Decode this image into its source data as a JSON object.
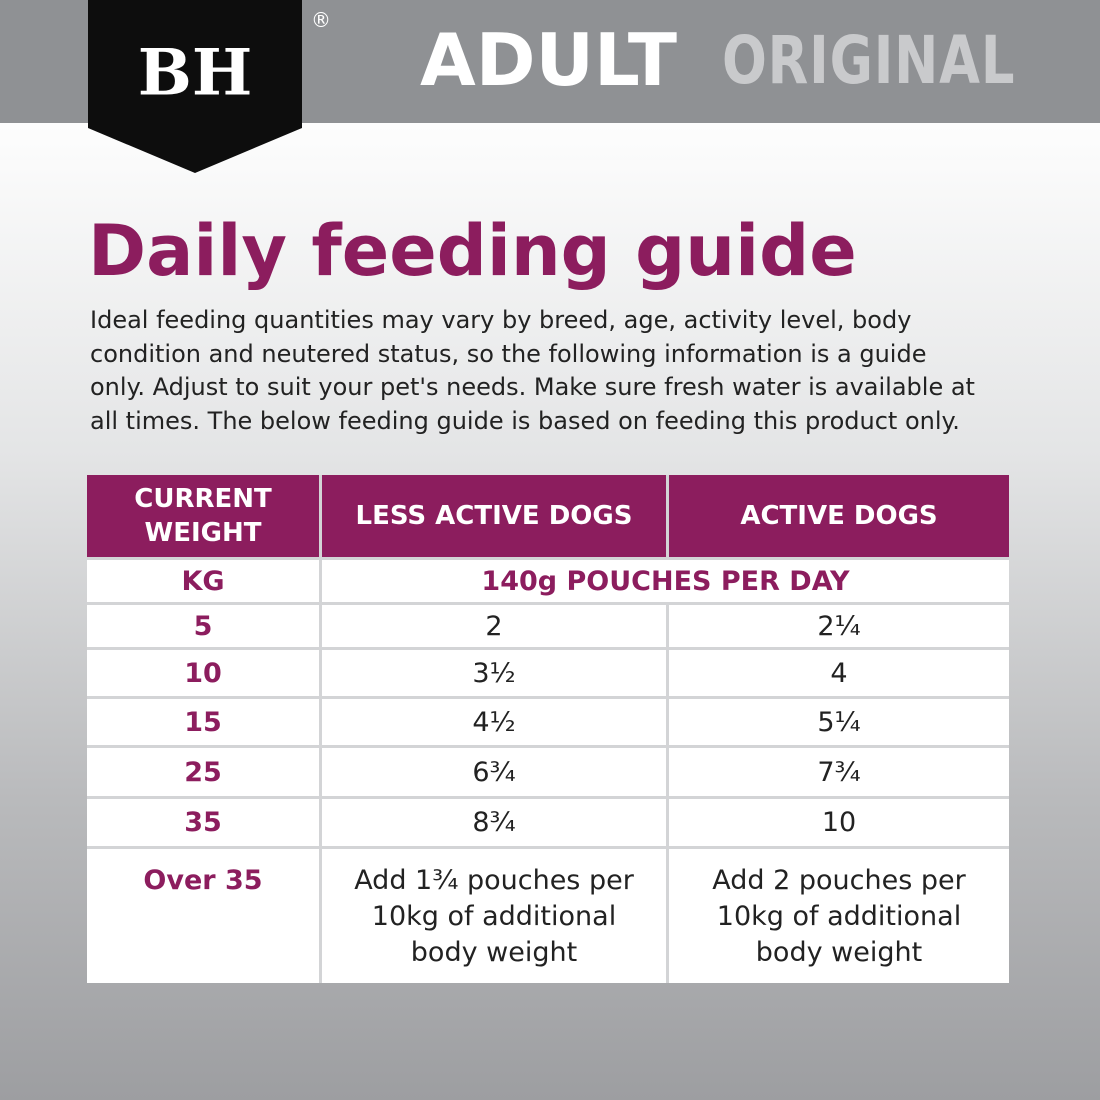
{
  "header": {
    "logo": "BH",
    "registered": "®",
    "title": "ADULT",
    "subtitle": "ORIGINAL"
  },
  "heading": "Daily feeding guide",
  "intro_lines": [
    "Ideal feeding quantities may vary by breed, age, activity level, body",
    "condition and neutered status, so the following information is a guide",
    "only. Adjust to suit your pet's needs. Make sure fresh water is available at",
    "all times. The below feeding guide is based on feeding this product only."
  ],
  "table": {
    "columns": [
      "CURRENT WEIGHT",
      "LESS ACTIVE DOGS",
      "ACTIVE DOGS"
    ],
    "unit_row": [
      "KG",
      "140g POUCHES PER DAY"
    ],
    "rows": [
      [
        "5",
        "2",
        "2¼"
      ],
      [
        "10",
        "3½",
        "4"
      ],
      [
        "15",
        "4½",
        "5¼"
      ],
      [
        "25",
        "6¾",
        "7¾"
      ],
      [
        "35",
        "8¾",
        "10"
      ],
      [
        "Over 35",
        "Add 1¾ pouches per 10kg of additional body weight",
        "Add 2 pouches per 10kg of additional body weight"
      ]
    ]
  }
}
